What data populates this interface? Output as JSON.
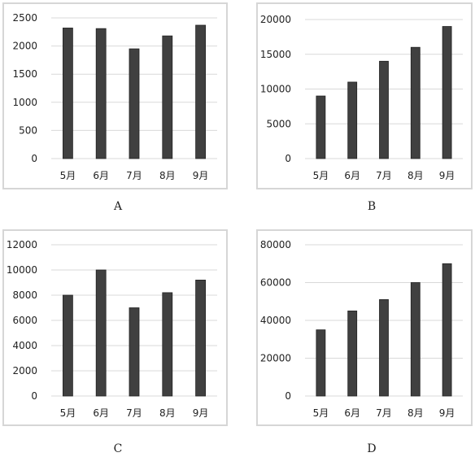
{
  "chart_data": [
    {
      "type": "bar",
      "categories": [
        "5月",
        "6月",
        "7月",
        "8月",
        "9月"
      ],
      "values": [
        2320,
        2310,
        1950,
        2180,
        2370
      ],
      "yticks": [
        "2500",
        "2000",
        "1500",
        "1000",
        "500",
        "0"
      ],
      "ylim": [
        0,
        2500
      ],
      "grid": true,
      "caption": "A",
      "bar_color": "#404040"
    },
    {
      "type": "bar",
      "categories": [
        "5月",
        "6月",
        "7月",
        "8月",
        "9月"
      ],
      "values": [
        9000,
        11000,
        14000,
        16000,
        19000
      ],
      "yticks": [
        "20000",
        "15000",
        "10000",
        "5000",
        "0"
      ],
      "ylim": [
        0,
        20000
      ],
      "grid": true,
      "caption": "B",
      "bar_color": "#404040"
    },
    {
      "type": "bar",
      "categories": [
        "5月",
        "6月",
        "7月",
        "8月",
        "9月"
      ],
      "values": [
        8000,
        10000,
        7000,
        8200,
        9200
      ],
      "yticks": [
        "12000",
        "10000",
        "8000",
        "6000",
        "4000",
        "2000",
        "0"
      ],
      "ylim": [
        0,
        12000
      ],
      "grid": true,
      "caption": "C",
      "bar_color": "#404040"
    },
    {
      "type": "bar",
      "categories": [
        "5月",
        "6月",
        "7月",
        "8月",
        "9月"
      ],
      "values": [
        35000,
        45000,
        51000,
        60000,
        70000
      ],
      "yticks": [
        "80000",
        "60000",
        "40000",
        "20000",
        "0"
      ],
      "ylim": [
        0,
        80000
      ],
      "grid": true,
      "caption": "D",
      "bar_color": "#404040"
    }
  ]
}
